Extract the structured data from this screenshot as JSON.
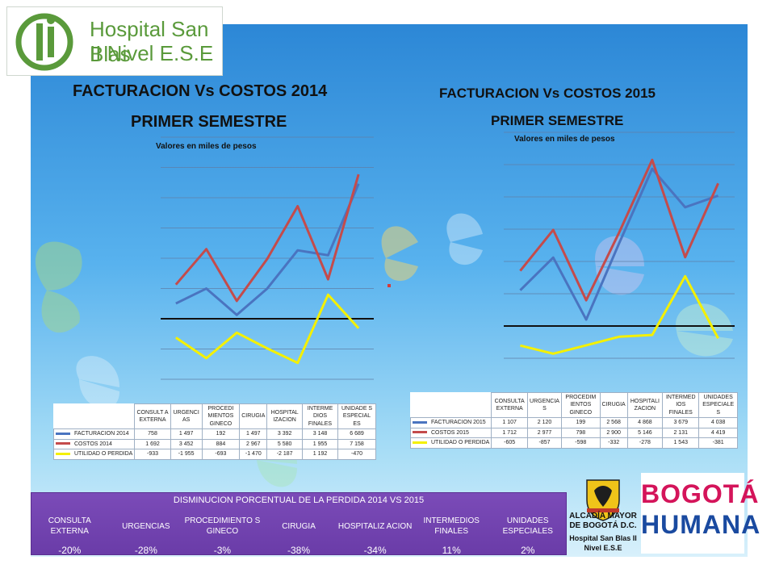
{
  "logo": {
    "line1": "Hospital San Blas",
    "line2": "II Nivel E.S.E",
    "color": "#5a9a3b"
  },
  "left": {
    "title1": "FACTURACION Vs COSTOS  2014",
    "title2": "PRIMER SEMESTRE",
    "units": "Valores en miles de pesos"
  },
  "right": {
    "title1": "FACTURACION Vs COSTOS  2015",
    "title2": "PRIMER SEMESTRE",
    "units": "Valores en miles de pesos"
  },
  "chart_data": [
    {
      "type": "line",
      "categories": [
        "CONSULT A EXTERNA",
        "URGENCI AS",
        "PROCEDI MIENTOS GINECO",
        "CIRUGIA",
        "HOSPITAL IZACION",
        "INTERME DIOS FINALES",
        "UNIDADE S ESPECIAL ES"
      ],
      "series": [
        {
          "name": "FACTURACION 2014",
          "color": "#4a74c0",
          "values": [
            758,
            1497,
            192,
            1497,
            3392,
            3148,
            6689
          ],
          "labels": [
            "758",
            "1 497",
            "192",
            "1 497",
            "3 392",
            "3 148",
            "6 689"
          ]
        },
        {
          "name": "COSTOS 2014",
          "color": "#c44b4b",
          "values": [
            1692,
            3452,
            884,
            2967,
            5580,
            1955,
            7158
          ],
          "labels": [
            "1 692",
            "3 452",
            "884",
            "2 967",
            "5 580",
            "1 955",
            "7 158"
          ]
        },
        {
          "name": "UTILIDAD O PERDIDA",
          "color": "#f4f000",
          "values": [
            -933,
            -1955,
            -693,
            -1470,
            -2187,
            1192,
            -470
          ],
          "labels": [
            "-933",
            "-1 955",
            "-693",
            "-1 470",
            "-2 187",
            "1 192",
            "-470"
          ]
        }
      ],
      "ylim": [
        -3000,
        9000
      ],
      "grid": true,
      "legend": "table-below"
    },
    {
      "type": "line",
      "categories": [
        "CONSULTA EXTERNA",
        "URGENCIA S",
        "PROCEDIM IENTOS GINECO",
        "CIRUGIA",
        "HOSPITALI ZACION",
        "INTERMED IOS FINALES",
        "UNIDADES ESPECIALE S"
      ],
      "series": [
        {
          "name": "FACTURACION 2015",
          "color": "#4a74c0",
          "values": [
            1107,
            2120,
            199,
            2568,
            4868,
            3679,
            4038
          ],
          "labels": [
            "1 107",
            "2 120",
            "199",
            "2 568",
            "4 868",
            "3 679",
            "4 038"
          ]
        },
        {
          "name": "COSTOS 2015",
          "color": "#c44b4b",
          "values": [
            1712,
            2977,
            798,
            2900,
            5146,
            2131,
            4419
          ],
          "labels": [
            "1 712",
            "2 977",
            "798",
            "2 900",
            "5 146",
            "2 131",
            "4 419"
          ]
        },
        {
          "name": "UTILIDAD O PERDIDA",
          "color": "#f4f000",
          "values": [
            -605,
            -857,
            -598,
            -332,
            -278,
            1543,
            -381
          ],
          "labels": [
            "-605",
            "-857",
            "-598",
            "-332",
            "-278",
            "1 543",
            "-381"
          ]
        }
      ],
      "ylim": [
        -1000,
        6000
      ],
      "grid": true,
      "legend": "table-below"
    }
  ],
  "summary": {
    "title": "DISMINUCION PORCENTUAL DE LA PERDIDA 2014  VS 2015",
    "headers": [
      "CONSULTA EXTERNA",
      "URGENCIAS",
      "PROCEDIMIENTO S GINECO",
      "CIRUGIA",
      "HOSPITALIZ ACION",
      "INTERMEDIOS FINALES",
      "UNIDADES ESPECIALES"
    ],
    "values": [
      "-20%",
      "-28%",
      "-3%",
      "-38%",
      "-34%",
      "11%",
      "2%"
    ]
  },
  "crest": {
    "line1": "ALCADÍA MAYOR",
    "line2": "DE BOGOTÁ D.C.",
    "line3": "Hospital San Blas II",
    "line4": "Nivel E.S.E"
  },
  "brand": {
    "line1": "BOGOTÁ",
    "line2": "HUMANA"
  }
}
